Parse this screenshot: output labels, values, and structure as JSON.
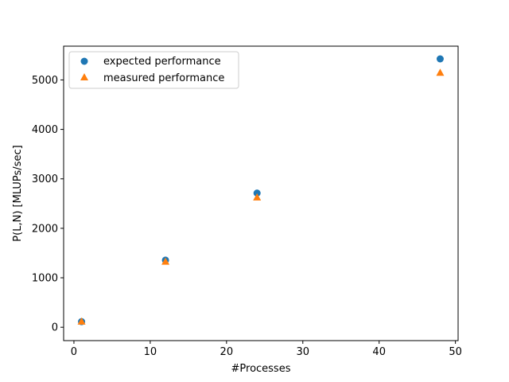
{
  "chart_data": {
    "type": "scatter",
    "title": "",
    "xlabel": "#Processes",
    "ylabel": "P(L,N) [MLUPs/sec]",
    "xlim": [
      -1.35,
      50.35
    ],
    "ylim": [
      -270.5,
      5682.5
    ],
    "xticks": [
      0,
      10,
      20,
      30,
      40,
      50
    ],
    "yticks": [
      0,
      1000,
      2000,
      3000,
      4000,
      5000
    ],
    "grid": false,
    "legend_position": "upper-left",
    "series": [
      {
        "name": "expected performance",
        "marker": "circle",
        "color": "#1f77b4",
        "x": [
          1,
          12,
          24,
          48
        ],
        "y": [
          113,
          1356,
          2712,
          5425
        ]
      },
      {
        "name": "measured performance",
        "marker": "triangle",
        "color": "#ff7f0e",
        "x": [
          1,
          12,
          24,
          48
        ],
        "y": [
          110,
          1320,
          2620,
          5140
        ]
      }
    ]
  }
}
